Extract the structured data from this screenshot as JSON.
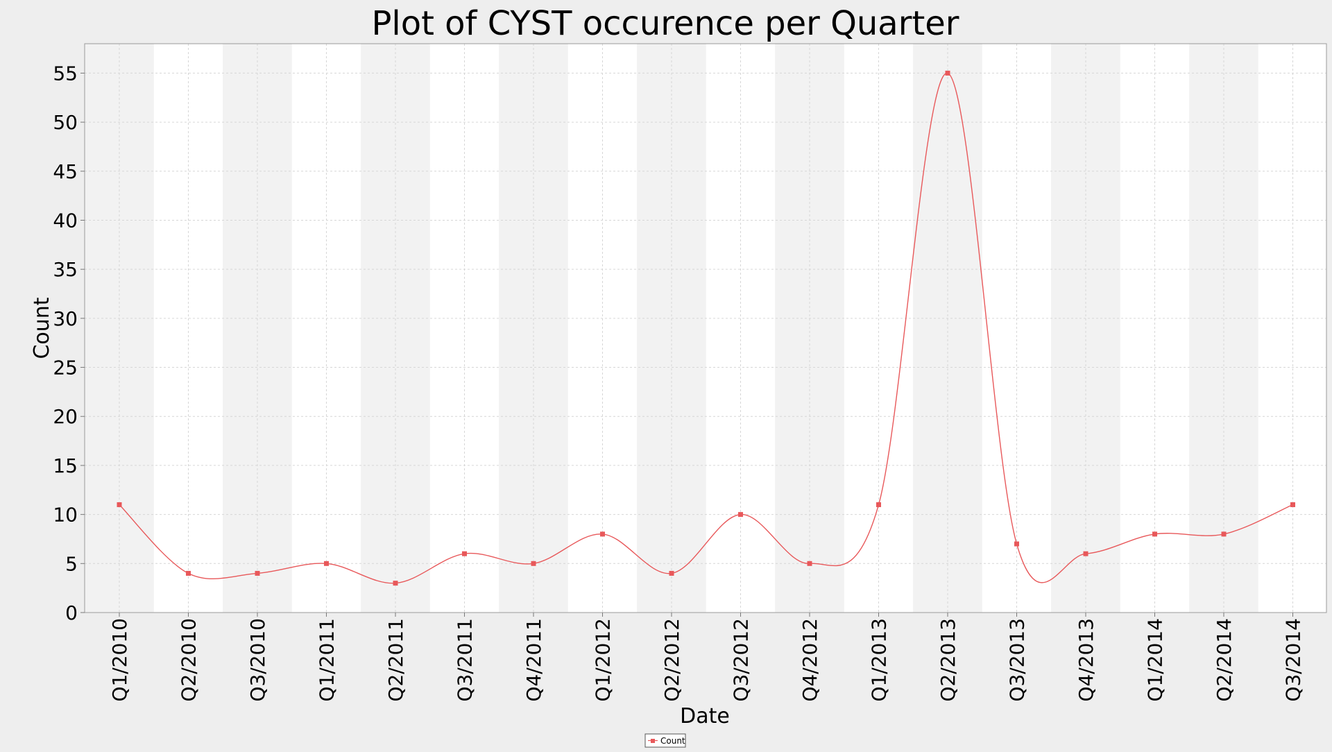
{
  "chart_data": {
    "type": "line",
    "title": "Plot of CYST occurence per Quarter",
    "xlabel": "Date",
    "ylabel": "Count",
    "categories": [
      "Q1/2010",
      "Q2/2010",
      "Q3/2010",
      "Q1/2011",
      "Q2/2011",
      "Q3/2011",
      "Q4/2011",
      "Q1/2012",
      "Q2/2012",
      "Q3/2012",
      "Q4/2012",
      "Q1/2013",
      "Q2/2013",
      "Q3/2013",
      "Q4/2013",
      "Q1/2014",
      "Q2/2014",
      "Q3/2014"
    ],
    "series": [
      {
        "name": "Count",
        "color": "#e8585a",
        "values": [
          11,
          4,
          4,
          5,
          3,
          6,
          5,
          8,
          4,
          10,
          5,
          11,
          55,
          7,
          6,
          8,
          8,
          11
        ]
      }
    ],
    "ylim": [
      0,
      58
    ],
    "yticks": [
      0,
      5,
      10,
      15,
      20,
      25,
      30,
      35,
      40,
      45,
      50,
      55
    ],
    "grid": true,
    "smoothed": true,
    "legend_position": "bottom-center",
    "background_bands": [
      "#f2f2f2",
      "#ffffff"
    ]
  }
}
